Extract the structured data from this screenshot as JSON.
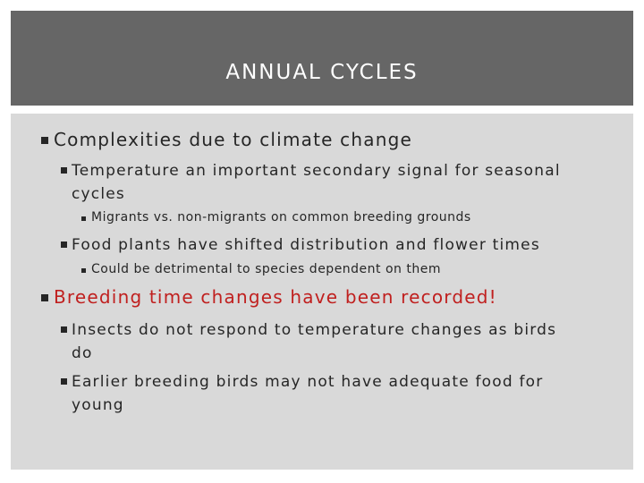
{
  "title": "ANNUAL CYCLES",
  "bullets": {
    "b1": "Complexities due to climate change",
    "b1_1_line1": "Temperature an important secondary signal for seasonal",
    "b1_1_line2": "cycles",
    "b1_1_1": "Migrants vs. non-migrants on common breeding grounds",
    "b1_2": "Food plants have shifted distribution and flower times",
    "b1_2_1": "Could be detrimental to species dependent on them",
    "b2": "Breeding time changes have been recorded!",
    "b2_1_line1": "Insects do not respond to temperature changes as birds",
    "b2_1_line2": "do",
    "b2_2_line1": "Earlier breeding birds may not have adequate food for",
    "b2_2_line2": "young"
  },
  "colors": {
    "title_band": "#666666",
    "content_bg": "#d9d9d9",
    "text": "#262626",
    "highlight": "#c0201f"
  }
}
